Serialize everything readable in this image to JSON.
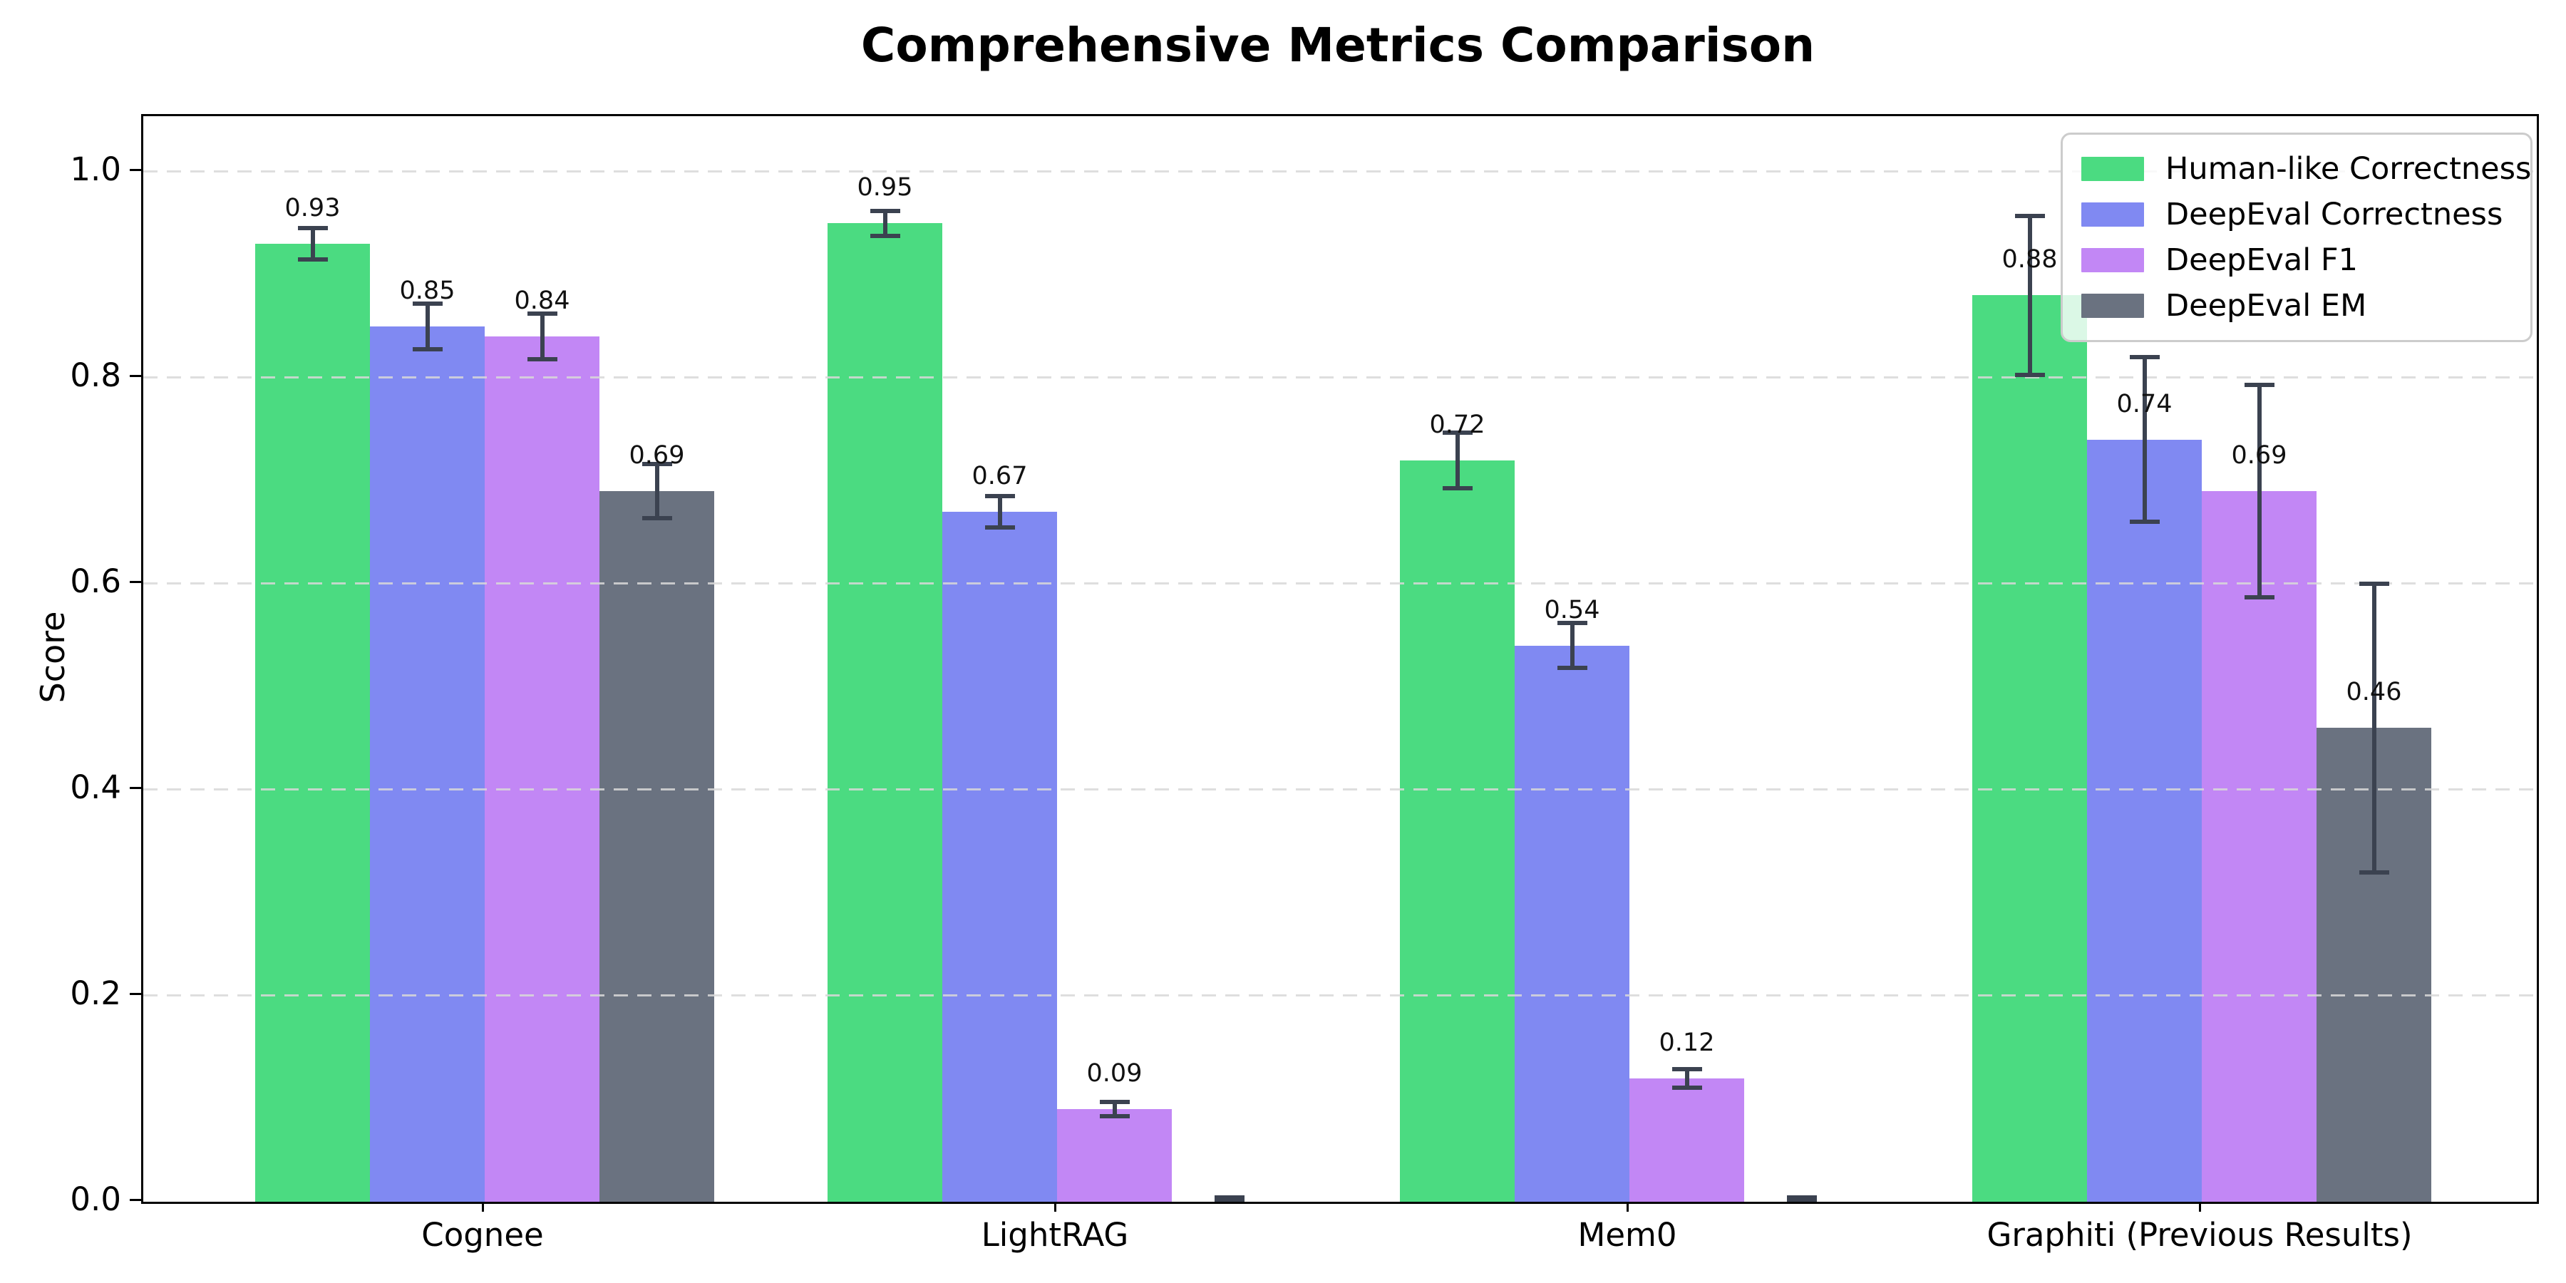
{
  "title": "Comprehensive Metrics Comparison",
  "axes": {
    "ylabel": "Score",
    "xlabel": "",
    "ytick_labels": [
      "0.0",
      "0.2",
      "0.4",
      "0.6",
      "0.8",
      "1.0"
    ],
    "ytick_values": [
      0.0,
      0.2,
      0.4,
      0.6,
      0.8,
      1.0
    ],
    "ylim": [
      0.0,
      1.054
    ],
    "grid": "horizontal-dashed"
  },
  "chart_data": {
    "type": "bar",
    "title": "Comprehensive Metrics Comparison",
    "xlabel": "",
    "ylabel": "Score",
    "ylim": [
      0.0,
      1.054
    ],
    "grid": true,
    "legend_position": "upper right",
    "categories": [
      "Cognee",
      "LightRAG",
      "Mem0",
      "Graphiti (Previous Results)"
    ],
    "series": [
      {
        "name": "Human-like Correctness",
        "color": "#4bdb81",
        "values": [
          0.93,
          0.95,
          0.72,
          0.88
        ],
        "errors": [
          0.015,
          0.012,
          0.027,
          0.077
        ],
        "labels": [
          "0.93",
          "0.95",
          "0.72",
          "0.88"
        ]
      },
      {
        "name": "DeepEval Correctness",
        "color": "#8089f2",
        "values": [
          0.85,
          0.67,
          0.54,
          0.74
        ],
        "errors": [
          0.022,
          0.015,
          0.022,
          0.08
        ],
        "labels": [
          "0.85",
          "0.67",
          "0.54",
          "0.74"
        ]
      },
      {
        "name": "DeepEval F1",
        "color": "#c287f5",
        "values": [
          0.84,
          0.09,
          0.12,
          0.69
        ],
        "errors": [
          0.022,
          0.007,
          0.009,
          0.103
        ],
        "labels": [
          "0.84",
          "0.09",
          "0.12",
          "0.69"
        ]
      },
      {
        "name": "DeepEval EM",
        "color": "#6a7280",
        "values": [
          0.69,
          0.0,
          0.0,
          0.46
        ],
        "errors": [
          0.026,
          0.004,
          0.004,
          0.14
        ],
        "labels": [
          "0.69",
          null,
          null,
          "0.46"
        ]
      }
    ]
  },
  "style": {
    "error_bar_color": "#3b4250",
    "grid_color": "#d9d9d9",
    "spine_color": "#000000",
    "legend_border_color": "#cccccc"
  }
}
